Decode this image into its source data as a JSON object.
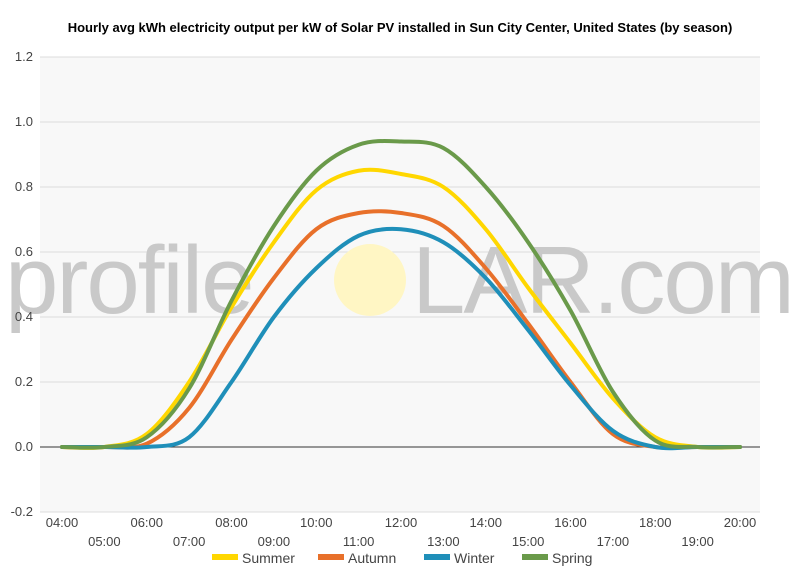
{
  "chart_data": {
    "type": "line",
    "title": "Hourly avg kWh electricity output per kW of Solar PV installed in Sun City Center, United States (by season)",
    "x": [
      "04:00",
      "05:00",
      "06:00",
      "07:00",
      "08:00",
      "09:00",
      "10:00",
      "11:00",
      "12:00",
      "13:00",
      "14:00",
      "15:00",
      "16:00",
      "17:00",
      "18:00",
      "19:00",
      "20:00"
    ],
    "ylim": [
      -0.2,
      1.2
    ],
    "yticks": [
      "-0.2",
      "0.0",
      "0.2",
      "0.4",
      "0.6",
      "0.8",
      "1.0",
      "1.2"
    ],
    "grid": true,
    "legend_position": "bottom",
    "series": [
      {
        "name": "Summer",
        "color": "#ffd700",
        "values": [
          0,
          0.0,
          0.04,
          0.2,
          0.43,
          0.63,
          0.79,
          0.85,
          0.84,
          0.8,
          0.67,
          0.49,
          0.32,
          0.15,
          0.03,
          0.0,
          0
        ]
      },
      {
        "name": "Autumn",
        "color": "#e8702a",
        "values": [
          0,
          0.0,
          0.01,
          0.12,
          0.33,
          0.52,
          0.67,
          0.72,
          0.72,
          0.68,
          0.55,
          0.38,
          0.2,
          0.04,
          0.0,
          0.0,
          0
        ]
      },
      {
        "name": "Winter",
        "color": "#1f8fb9",
        "values": [
          0,
          0.0,
          0.0,
          0.03,
          0.2,
          0.4,
          0.55,
          0.65,
          0.67,
          0.63,
          0.52,
          0.36,
          0.19,
          0.05,
          0.0,
          0.0,
          0
        ]
      },
      {
        "name": "Spring",
        "color": "#6a9a4a",
        "values": [
          0,
          0.0,
          0.03,
          0.18,
          0.45,
          0.68,
          0.85,
          0.93,
          0.94,
          0.92,
          0.8,
          0.63,
          0.42,
          0.17,
          0.02,
          0.0,
          0
        ]
      }
    ]
  },
  "watermark": {
    "left": "profile",
    "right": "LAR.com"
  }
}
